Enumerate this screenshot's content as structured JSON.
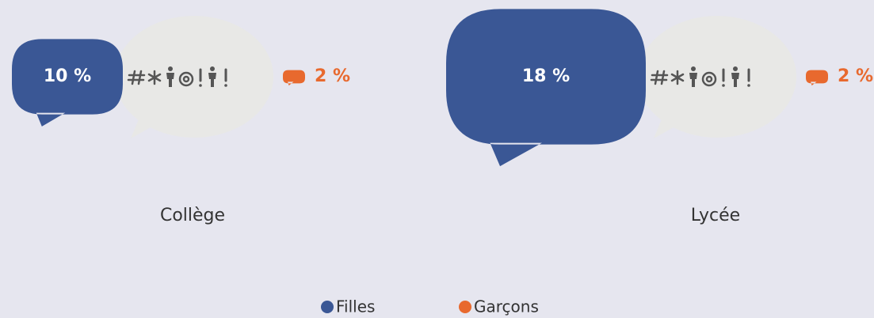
{
  "chart_data": {
    "type": "speech-bubble",
    "categories": [
      "Collège",
      "Lycée"
    ],
    "series": [
      {
        "name": "Filles",
        "color": "#3a5795",
        "values": [
          10,
          18
        ],
        "value_labels": [
          "10 %",
          "18 %"
        ]
      },
      {
        "name": "Garçons",
        "color": "#e8692e",
        "values": [
          2,
          2
        ],
        "value_labels": [
          "2 %",
          "2 %"
        ]
      }
    ]
  }
}
